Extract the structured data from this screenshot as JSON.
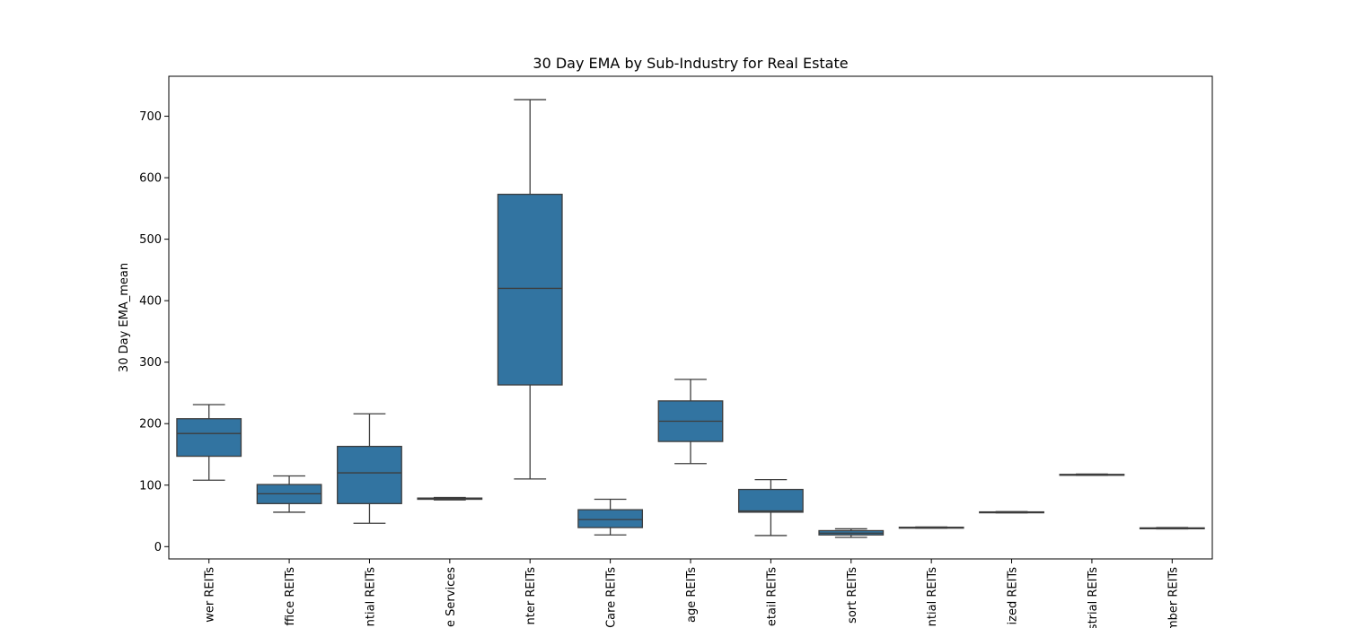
{
  "chart_data": {
    "type": "box",
    "title": "30 Day EMA by Sub-Industry for Real Estate",
    "xlabel": "",
    "ylabel": "30 Day EMA_mean",
    "ylim": [
      -20,
      765
    ],
    "yticks": [
      0,
      100,
      200,
      300,
      400,
      500,
      600,
      700
    ],
    "grid": false,
    "box_color": "#3274a1",
    "line_color": "#3d3d3d",
    "categories": [
      "wer REITs",
      "ffice REITs",
      "ntial REITs",
      "e Services",
      "nter REITs",
      "Care REITs",
      "age REITs",
      "etail REITs",
      "sort REITs",
      "ntial REITs",
      "ized REITs",
      "strial REITs",
      "mber REITs"
    ],
    "series": [
      {
        "whisker_low": 108,
        "q1": 147,
        "median": 184,
        "q3": 208,
        "whisker_high": 231
      },
      {
        "whisker_low": 56,
        "q1": 70,
        "median": 86,
        "q3": 101,
        "whisker_high": 115
      },
      {
        "whisker_low": 38,
        "q1": 70,
        "median": 120,
        "q3": 163,
        "whisker_high": 216
      },
      {
        "whisker_low": 76,
        "q1": 77,
        "median": 78,
        "q3": 79,
        "whisker_high": 80
      },
      {
        "whisker_low": 110,
        "q1": 263,
        "median": 420,
        "q3": 573,
        "whisker_high": 727
      },
      {
        "whisker_low": 19,
        "q1": 31,
        "median": 44,
        "q3": 60,
        "whisker_high": 77
      },
      {
        "whisker_low": 135,
        "q1": 171,
        "median": 204,
        "q3": 237,
        "whisker_high": 272
      },
      {
        "whisker_low": 18,
        "q1": 56,
        "median": 58,
        "q3": 93,
        "whisker_high": 109
      },
      {
        "whisker_low": 15,
        "q1": 19,
        "median": 22,
        "q3": 26,
        "whisker_high": 29
      },
      {
        "whisker_low": 30,
        "q1": 30.5,
        "median": 31,
        "q3": 31.5,
        "whisker_high": 32
      },
      {
        "whisker_low": 55,
        "q1": 55.5,
        "median": 56,
        "q3": 56.5,
        "whisker_high": 57
      },
      {
        "whisker_low": 116,
        "q1": 116.5,
        "median": 117,
        "q3": 117.5,
        "whisker_high": 118
      },
      {
        "whisker_low": 29,
        "q1": 29.5,
        "median": 30,
        "q3": 30.5,
        "whisker_high": 31
      }
    ]
  }
}
